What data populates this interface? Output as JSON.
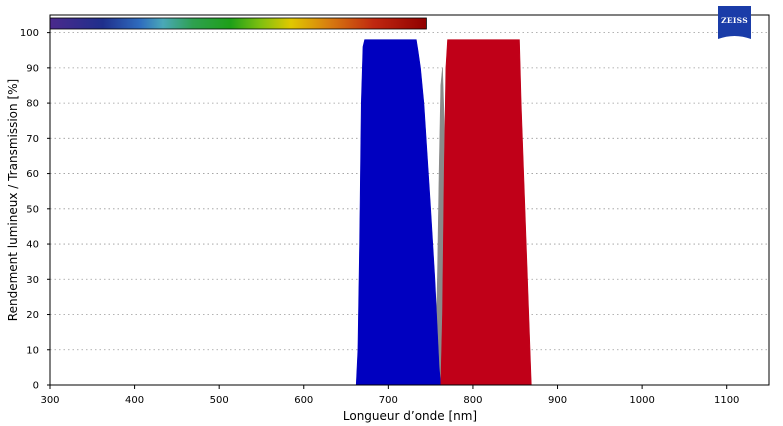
{
  "chart_data": {
    "type": "area",
    "xlabel": "Longueur d’onde [nm]",
    "ylabel": "Rendement lumineux / Transmission [%]",
    "xlim": [
      300,
      1150
    ],
    "ylim": [
      0,
      105
    ],
    "x_ticks": [
      300,
      400,
      500,
      600,
      700,
      800,
      900,
      1000,
      1100
    ],
    "y_ticks": [
      0,
      10,
      20,
      30,
      40,
      50,
      60,
      70,
      80,
      90,
      100
    ],
    "grid": "horizontal-dotted",
    "spectrum_bar": {
      "from": 300,
      "to": 745
    },
    "series": [
      {
        "color": "#8a8a8a",
        "x": [
          755,
          758,
          760,
          762,
          764,
          766,
          768,
          770
        ],
        "y": [
          0,
          30,
          60,
          85,
          90,
          75,
          40,
          0
        ]
      },
      {
        "color": "#0000c0",
        "x": [
          662,
          664,
          666,
          668,
          670,
          672,
          730,
          733,
          735,
          738,
          742,
          746,
          750,
          755,
          758,
          760,
          762
        ],
        "y": [
          0,
          10,
          40,
          80,
          96,
          98,
          98,
          98,
          95,
          90,
          80,
          65,
          50,
          30,
          15,
          5,
          0
        ]
      },
      {
        "color": "#c00018",
        "x": [
          762,
          764,
          766,
          768,
          770,
          855,
          857,
          860,
          863,
          866,
          869
        ],
        "y": [
          0,
          20,
          60,
          90,
          98,
          98,
          80,
          60,
          40,
          20,
          0
        ]
      }
    ]
  },
  "logo": {
    "text": "ZEISS",
    "color": "#1a3ca8"
  }
}
